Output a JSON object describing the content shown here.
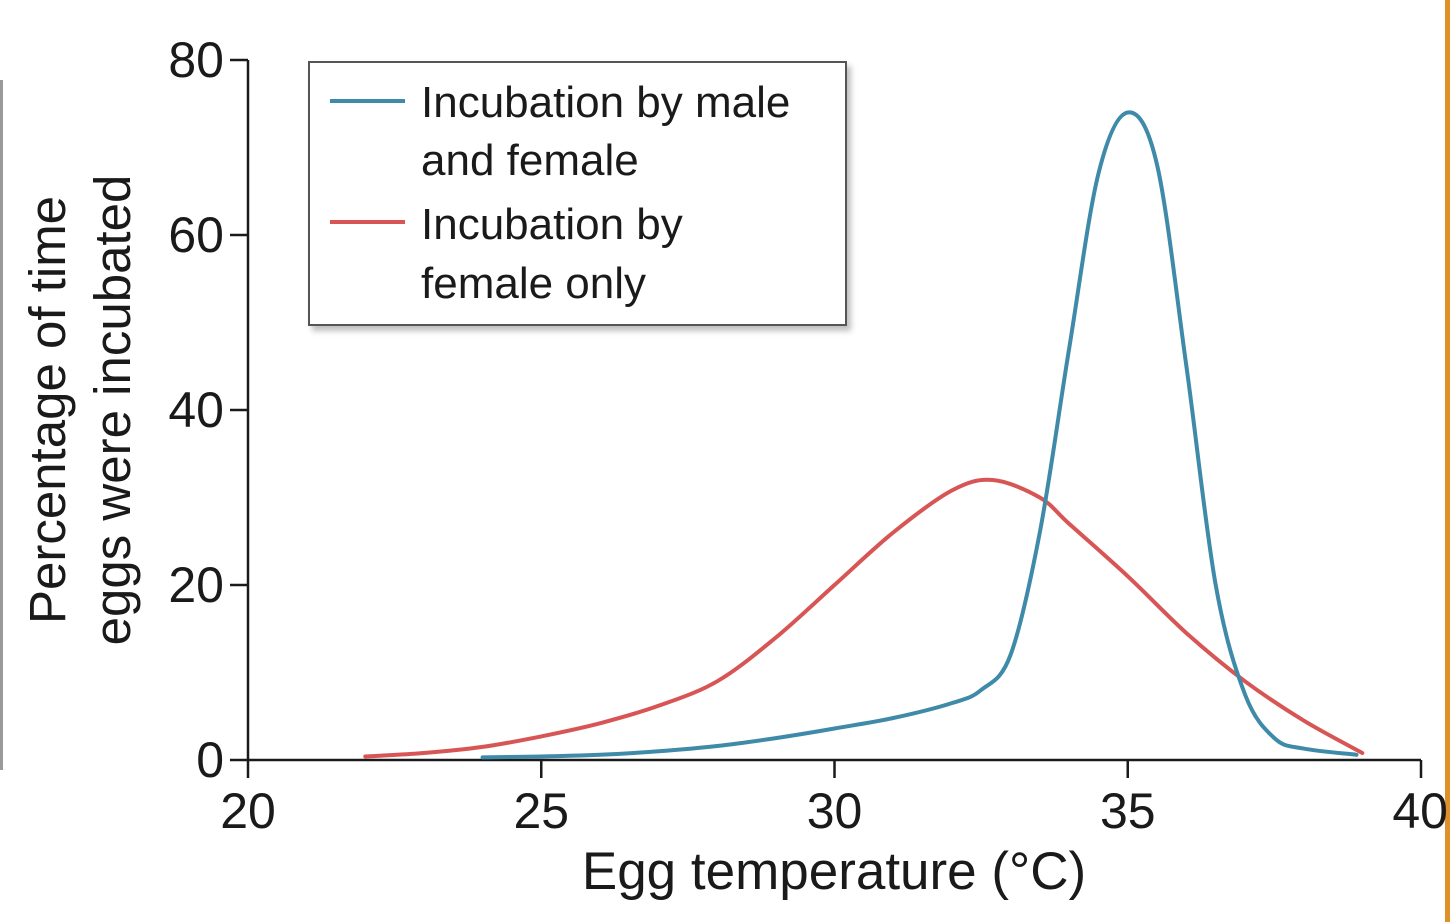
{
  "chart_data": {
    "type": "line",
    "xlabel": "Egg temperature (°C)",
    "ylabel_lines": [
      "Percentage of time",
      "eggs were incubated"
    ],
    "xlim": [
      20,
      40
    ],
    "ylim": [
      0,
      80
    ],
    "x_ticks": [
      "20",
      "25",
      "30",
      "35",
      "40"
    ],
    "y_ticks": [
      "0",
      "20",
      "40",
      "60",
      "80"
    ],
    "grid": false,
    "legend_position": "top-left",
    "series": [
      {
        "name_lines": [
          "Incubation by male",
          "and female"
        ],
        "color": "#3e8aa8",
        "points": [
          [
            24,
            0.3
          ],
          [
            25,
            0.4
          ],
          [
            26,
            0.6
          ],
          [
            27,
            1.0
          ],
          [
            28,
            1.6
          ],
          [
            29,
            2.5
          ],
          [
            30,
            3.6
          ],
          [
            31,
            4.8
          ],
          [
            32,
            6.5
          ],
          [
            32.5,
            8.0
          ],
          [
            33,
            12.0
          ],
          [
            33.5,
            26.0
          ],
          [
            34,
            47.0
          ],
          [
            34.5,
            67.0
          ],
          [
            35,
            74.0
          ],
          [
            35.5,
            68.0
          ],
          [
            36,
            45.0
          ],
          [
            36.5,
            20.0
          ],
          [
            37,
            7.5
          ],
          [
            37.5,
            2.5
          ],
          [
            38,
            1.3
          ],
          [
            38.9,
            0.6
          ]
        ]
      },
      {
        "name_lines": [
          "Incubation by",
          "female only"
        ],
        "color": "#d85555",
        "points": [
          [
            22,
            0.4
          ],
          [
            23,
            0.8
          ],
          [
            24,
            1.5
          ],
          [
            25,
            2.7
          ],
          [
            26,
            4.2
          ],
          [
            27,
            6.2
          ],
          [
            28,
            9.0
          ],
          [
            29,
            14.0
          ],
          [
            30,
            20.0
          ],
          [
            31,
            26.0
          ],
          [
            32,
            30.8
          ],
          [
            32.7,
            32.0
          ],
          [
            33.5,
            30.0
          ],
          [
            34,
            27.0
          ],
          [
            35,
            21.0
          ],
          [
            36,
            14.5
          ],
          [
            37,
            9.0
          ],
          [
            38,
            4.5
          ],
          [
            39,
            0.8
          ]
        ]
      }
    ]
  }
}
